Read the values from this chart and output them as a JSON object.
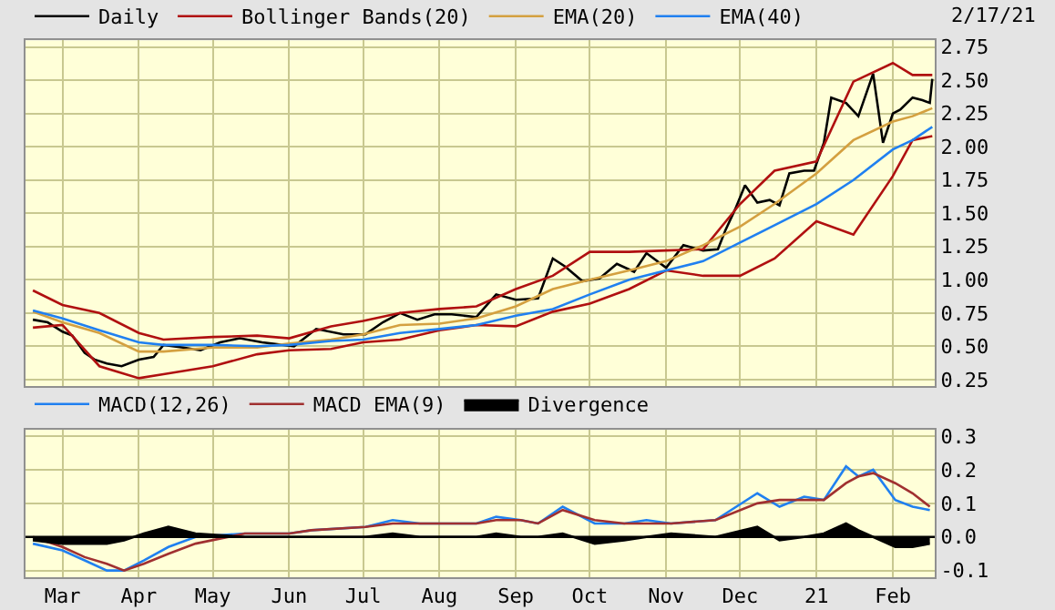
{
  "chart_data": [
    {
      "type": "line",
      "annotations": [
        "2/17/21"
      ],
      "xlim": [
        "2020-02-15",
        "2021-02-18"
      ],
      "xticks": [
        {
          "value": "2020-03-01",
          "label": null
        },
        {
          "value": "2020-04-01",
          "label": null
        },
        {
          "value": "2020-05-01",
          "label": null
        },
        {
          "value": "2020-06-01",
          "label": null
        },
        {
          "value": "2020-07-01",
          "label": null
        },
        {
          "value": "2020-08-01",
          "label": null
        },
        {
          "value": "2020-09-01",
          "label": null
        },
        {
          "value": "2020-10-01",
          "label": null
        },
        {
          "value": "2020-11-01",
          "label": null
        },
        {
          "value": "2020-12-01",
          "label": null
        },
        {
          "value": "2021-01-01",
          "label": null
        },
        {
          "value": "2021-02-01",
          "label": null
        }
      ],
      "ylim": [
        0.2,
        2.8
      ],
      "yticks": [
        0.25,
        {
          "value": 0.5,
          "label": "0.50"
        },
        0.75,
        {
          "value": 1,
          "label": "1.00"
        },
        1.25,
        {
          "value": 1.5,
          "label": "1.50"
        },
        1.75,
        {
          "value": 2,
          "label": "2.00"
        },
        2.25,
        {
          "value": 2.5,
          "label": "2.50"
        },
        2.75
      ],
      "grid": true,
      "legend": "top",
      "tick_labels": "y",
      "series": [
        {
          "name": "Daily",
          "color": "#000000",
          "x": [
            "2020-02-18",
            "2020-02-24",
            "2020-03-01",
            "2020-03-05",
            "2020-03-10",
            "2020-03-14",
            "2020-03-19",
            "2020-03-25",
            "2020-04-01",
            "2020-04-07",
            "2020-04-11",
            "2020-04-19",
            "2020-04-26",
            "2020-05-04",
            "2020-05-12",
            "2020-05-21",
            "2020-06-03",
            "2020-06-12",
            "2020-06-23",
            "2020-07-02",
            "2020-07-09",
            "2020-07-16",
            "2020-07-23",
            "2020-07-30",
            "2020-08-06",
            "2020-08-16",
            "2020-08-24",
            "2020-09-01",
            "2020-09-10",
            "2020-09-16",
            "2020-09-21",
            "2020-09-28",
            "2020-10-05",
            "2020-10-12",
            "2020-10-19",
            "2020-10-24",
            "2020-11-01",
            "2020-11-08",
            "2020-11-16",
            "2020-11-22",
            "2020-11-25",
            "2020-11-29",
            "2020-12-03",
            "2020-12-08",
            "2020-12-13",
            "2020-12-17",
            "2020-12-21",
            "2020-12-27",
            "2020-12-31",
            "2021-01-04",
            "2021-01-07",
            "2021-01-13",
            "2021-01-18",
            "2021-01-24",
            "2021-01-28",
            "2021-02-01",
            "2021-02-04",
            "2021-02-09",
            "2021-02-13",
            "2021-02-16",
            "2021-02-17"
          ],
          "values": [
            0.7,
            0.68,
            0.61,
            0.58,
            0.45,
            0.4,
            0.37,
            0.35,
            0.4,
            0.42,
            0.51,
            0.49,
            0.47,
            0.53,
            0.56,
            0.53,
            0.5,
            0.63,
            0.59,
            0.59,
            0.68,
            0.75,
            0.7,
            0.74,
            0.74,
            0.72,
            0.89,
            0.85,
            0.86,
            1.16,
            1.1,
            0.99,
            1.01,
            1.12,
            1.06,
            1.2,
            1.09,
            1.26,
            1.22,
            1.23,
            1.37,
            1.53,
            1.71,
            1.58,
            1.6,
            1.56,
            1.8,
            1.82,
            1.82,
            2.03,
            2.37,
            2.33,
            2.23,
            2.55,
            2.03,
            2.25,
            2.28,
            2.37,
            2.35,
            2.33,
            2.51
          ]
        },
        {
          "name": "Bollinger Bands(20)",
          "color": "#b01010",
          "x": [
            "2020-02-18",
            "2020-03-01",
            "2020-03-16",
            "2020-04-01",
            "2020-04-11",
            "2020-05-01",
            "2020-05-19",
            "2020-06-01",
            "2020-06-18",
            "2020-07-01",
            "2020-07-16",
            "2020-08-01",
            "2020-08-16",
            "2020-09-01",
            "2020-09-16",
            "2020-10-01",
            "2020-10-17",
            "2020-11-01",
            "2020-11-16",
            "2020-12-01",
            "2020-12-15",
            "2021-01-01",
            "2021-01-16",
            "2021-02-01",
            "2021-02-09",
            "2021-02-17"
          ],
          "values": [
            0.92,
            0.81,
            0.75,
            0.6,
            0.55,
            0.57,
            0.58,
            0.56,
            0.65,
            0.69,
            0.75,
            0.78,
            0.8,
            0.93,
            1.03,
            1.21,
            1.21,
            1.22,
            1.23,
            1.57,
            1.82,
            1.89,
            2.49,
            2.63,
            2.54,
            2.54
          ]
        },
        {
          "color": "#b01010",
          "x": [
            "2020-02-18",
            "2020-03-01",
            "2020-03-16",
            "2020-04-01",
            "2020-04-11",
            "2020-05-01",
            "2020-05-19",
            "2020-06-01",
            "2020-06-18",
            "2020-07-01",
            "2020-07-16",
            "2020-08-01",
            "2020-08-16",
            "2020-09-01",
            "2020-09-16",
            "2020-10-01",
            "2020-10-17",
            "2020-11-01",
            "2020-11-16",
            "2020-12-01",
            "2020-12-15",
            "2021-01-01",
            "2021-01-16",
            "2021-02-01",
            "2021-02-09",
            "2021-02-17"
          ],
          "values": [
            0.64,
            0.66,
            0.35,
            0.26,
            0.29,
            0.35,
            0.44,
            0.47,
            0.48,
            0.53,
            0.55,
            0.62,
            0.66,
            0.65,
            0.76,
            0.82,
            0.93,
            1.07,
            1.03,
            1.03,
            1.16,
            1.44,
            1.34,
            1.78,
            2.05,
            2.08
          ]
        },
        {
          "name": "EMA(20)",
          "color": "#d4a040",
          "x": [
            "2020-02-18",
            "2020-03-01",
            "2020-03-16",
            "2020-04-01",
            "2020-04-11",
            "2020-05-01",
            "2020-05-19",
            "2020-06-01",
            "2020-06-18",
            "2020-07-01",
            "2020-07-16",
            "2020-08-01",
            "2020-08-16",
            "2020-09-01",
            "2020-09-16",
            "2020-10-01",
            "2020-10-17",
            "2020-11-01",
            "2020-11-16",
            "2020-12-01",
            "2020-12-15",
            "2021-01-01",
            "2021-01-16",
            "2021-02-01",
            "2021-02-09",
            "2021-02-17"
          ],
          "values": [
            0.76,
            0.68,
            0.6,
            0.46,
            0.46,
            0.49,
            0.49,
            0.52,
            0.55,
            0.59,
            0.66,
            0.67,
            0.71,
            0.8,
            0.93,
            1.0,
            1.07,
            1.14,
            1.26,
            1.4,
            1.57,
            1.8,
            2.05,
            2.19,
            2.23,
            2.29
          ]
        },
        {
          "name": "EMA(40)",
          "color": "#2080f0",
          "x": [
            "2020-02-18",
            "2020-03-01",
            "2020-03-16",
            "2020-04-01",
            "2020-04-11",
            "2020-05-01",
            "2020-05-19",
            "2020-06-01",
            "2020-06-18",
            "2020-07-01",
            "2020-07-16",
            "2020-08-01",
            "2020-08-16",
            "2020-09-01",
            "2020-09-16",
            "2020-10-01",
            "2020-10-17",
            "2020-11-01",
            "2020-11-16",
            "2020-12-01",
            "2020-12-15",
            "2021-01-01",
            "2021-01-16",
            "2021-02-01",
            "2021-02-09",
            "2021-02-17"
          ],
          "values": [
            0.77,
            0.71,
            0.62,
            0.53,
            0.51,
            0.51,
            0.5,
            0.51,
            0.54,
            0.55,
            0.6,
            0.63,
            0.66,
            0.73,
            0.78,
            0.89,
            1.0,
            1.07,
            1.14,
            1.28,
            1.41,
            1.57,
            1.75,
            1.98,
            2.05,
            2.15
          ]
        }
      ]
    },
    {
      "type": "line",
      "xlim": [
        "2020-02-15",
        "2021-02-18"
      ],
      "xticks": [
        {
          "value": "2020-03-01",
          "label": "Mar"
        },
        {
          "value": "2020-04-01",
          "label": "Apr"
        },
        {
          "value": "2020-05-01",
          "label": "May"
        },
        {
          "value": "2020-06-01",
          "label": "Jun"
        },
        {
          "value": "2020-07-01",
          "label": "Jul"
        },
        {
          "value": "2020-08-01",
          "label": "Aug"
        },
        {
          "value": "2020-09-01",
          "label": "Sep"
        },
        {
          "value": "2020-10-01",
          "label": "Oct"
        },
        {
          "value": "2020-11-01",
          "label": "Nov"
        },
        {
          "value": "2020-12-01",
          "label": "Dec"
        },
        {
          "value": "2021-01-01",
          "label": "21"
        },
        {
          "value": "2021-02-01",
          "label": "Feb"
        }
      ],
      "ylim": [
        -0.12,
        0.32
      ],
      "yticks": [
        -0.1,
        {
          "value": 0,
          "label": "0.0"
        },
        0.1,
        0.2,
        0.3
      ],
      "grid": true,
      "legend": "top",
      "ref_lines": [
        {
          "axis": "y",
          "value": 0,
          "color": "#000000"
        }
      ],
      "series": [
        {
          "name": "MACD(12,26)",
          "color": "#2080f0",
          "x": [
            "2020-02-18",
            "2020-03-01",
            "2020-03-10",
            "2020-03-19",
            "2020-03-26",
            "2020-04-03",
            "2020-04-13",
            "2020-04-24",
            "2020-05-14",
            "2020-06-01",
            "2020-06-10",
            "2020-07-02",
            "2020-07-13",
            "2020-07-24",
            "2020-08-16",
            "2020-08-24",
            "2020-09-03",
            "2020-09-10",
            "2020-09-20",
            "2020-10-03",
            "2020-10-15",
            "2020-10-24",
            "2020-11-03",
            "2020-11-21",
            "2020-12-08",
            "2020-12-17",
            "2020-12-27",
            "2021-01-04",
            "2021-01-13",
            "2021-01-18",
            "2021-01-24",
            "2021-02-02",
            "2021-02-09",
            "2021-02-16"
          ],
          "values": [
            -0.02,
            -0.04,
            -0.07,
            -0.1,
            -0.1,
            -0.07,
            -0.03,
            0.0,
            0.01,
            0.01,
            0.02,
            0.03,
            0.05,
            0.04,
            0.04,
            0.06,
            0.05,
            0.04,
            0.09,
            0.04,
            0.04,
            0.05,
            0.04,
            0.05,
            0.13,
            0.09,
            0.12,
            0.11,
            0.21,
            0.18,
            0.2,
            0.11,
            0.09,
            0.08
          ]
        },
        {
          "name": "MACD EMA(9)",
          "color": "#a03030",
          "x": [
            "2020-02-18",
            "2020-03-01",
            "2020-03-10",
            "2020-03-19",
            "2020-03-26",
            "2020-04-03",
            "2020-04-13",
            "2020-04-24",
            "2020-05-14",
            "2020-06-01",
            "2020-06-10",
            "2020-07-02",
            "2020-07-13",
            "2020-07-24",
            "2020-08-16",
            "2020-08-24",
            "2020-09-03",
            "2020-09-10",
            "2020-09-20",
            "2020-10-03",
            "2020-10-15",
            "2020-10-24",
            "2020-11-03",
            "2020-11-21",
            "2020-12-08",
            "2020-12-17",
            "2020-12-27",
            "2021-01-04",
            "2021-01-13",
            "2021-01-18",
            "2021-01-24",
            "2021-02-02",
            "2021-02-09",
            "2021-02-16"
          ],
          "values": [
            0.0,
            -0.03,
            -0.06,
            -0.08,
            -0.1,
            -0.08,
            -0.05,
            -0.02,
            0.01,
            0.01,
            0.02,
            0.03,
            0.04,
            0.04,
            0.04,
            0.05,
            0.05,
            0.04,
            0.08,
            0.05,
            0.04,
            0.04,
            0.04,
            0.05,
            0.1,
            0.11,
            0.11,
            0.11,
            0.16,
            0.18,
            0.19,
            0.16,
            0.13,
            0.09
          ]
        },
        {
          "name": "Divergence",
          "type": "area",
          "color": "#000000",
          "x": [
            "2020-02-18",
            "2020-03-01",
            "2020-03-10",
            "2020-03-19",
            "2020-03-26",
            "2020-04-03",
            "2020-04-13",
            "2020-04-24",
            "2020-05-14",
            "2020-06-01",
            "2020-06-10",
            "2020-07-02",
            "2020-07-13",
            "2020-07-24",
            "2020-08-16",
            "2020-08-24",
            "2020-09-03",
            "2020-09-10",
            "2020-09-20",
            "2020-10-03",
            "2020-10-15",
            "2020-10-24",
            "2020-11-03",
            "2020-11-21",
            "2020-12-08",
            "2020-12-17",
            "2020-12-27",
            "2021-01-04",
            "2021-01-13",
            "2021-01-18",
            "2021-01-24",
            "2021-02-02",
            "2021-02-09",
            "2021-02-16"
          ],
          "values": [
            -0.01,
            -0.02,
            -0.02,
            -0.02,
            -0.01,
            0.01,
            0.03,
            0.01,
            0.0,
            0.0,
            0.0,
            0.0,
            0.01,
            0.0,
            0.0,
            0.01,
            0.0,
            0.0,
            0.01,
            -0.02,
            -0.01,
            0.0,
            0.01,
            0.0,
            0.03,
            -0.01,
            0.0,
            0.01,
            0.04,
            0.02,
            0.0,
            -0.03,
            -0.03,
            -0.02
          ]
        }
      ]
    }
  ]
}
